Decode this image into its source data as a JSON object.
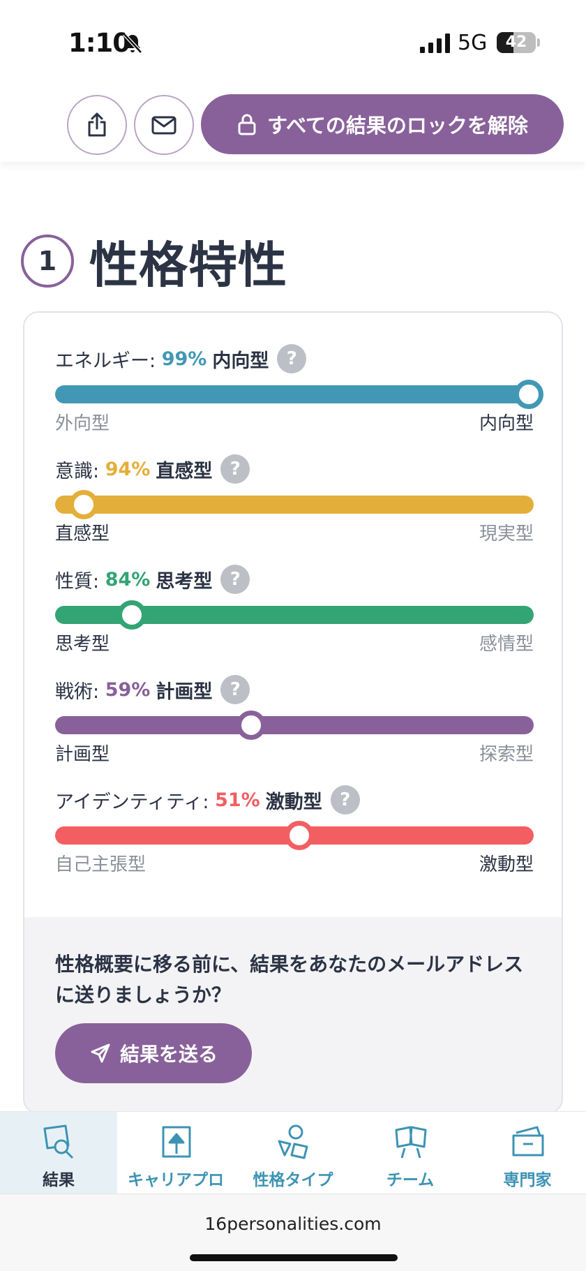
{
  "status_bar": {
    "time": "1:10",
    "network": "5G",
    "battery": "42",
    "battery_level": 0.42
  },
  "header": {
    "unlock_label": "すべての結果のロックを解除"
  },
  "section": {
    "number": "1",
    "title": "性格特性"
  },
  "colors": {
    "accent": "#88619a",
    "tab_text": "#3d93b4"
  },
  "traits": [
    {
      "name": "エネルギー: ",
      "percent": "99%",
      "type": "内向型",
      "left": "外向型",
      "right": "内向型",
      "position_percent": 99,
      "color": "#4298b4",
      "strong_side": "right"
    },
    {
      "name": "意識: ",
      "percent": "94%",
      "type": "直感型",
      "left": "直感型",
      "right": "現実型",
      "position_percent": 6,
      "color": "#e4ae3a",
      "strong_side": "left"
    },
    {
      "name": "性質: ",
      "percent": "84%",
      "type": "思考型",
      "left": "思考型",
      "right": "感情型",
      "position_percent": 16,
      "color": "#33a474",
      "strong_side": "left"
    },
    {
      "name": "戦術: ",
      "percent": "59%",
      "type": "計画型",
      "left": "計画型",
      "right": "探索型",
      "position_percent": 41,
      "color": "#88619a",
      "strong_side": "left"
    },
    {
      "name": "アイデンティティ: ",
      "percent": "51%",
      "type": "激動型",
      "left": "自己主張型",
      "right": "激動型",
      "position_percent": 51,
      "color": "#f25e62",
      "strong_side": "right"
    }
  ],
  "help_label": "?",
  "email_prompt": {
    "text": "性格概要に移る前に、結果をあなたのメールアドレスに送りましょうか？",
    "button_label": "結果を送る"
  },
  "tabs": [
    {
      "label": "結果",
      "icon": "results-search-icon",
      "active": true
    },
    {
      "label": "キャリアプロ",
      "icon": "career-arrow-icon",
      "active": false
    },
    {
      "label": "性格タイプ",
      "icon": "personality-shapes-icon",
      "active": false
    },
    {
      "label": "チーム",
      "icon": "team-people-icon",
      "active": false
    },
    {
      "label": "専門家",
      "icon": "expert-folder-icon",
      "active": false
    }
  ],
  "browser": {
    "url": "16personalities.com"
  }
}
